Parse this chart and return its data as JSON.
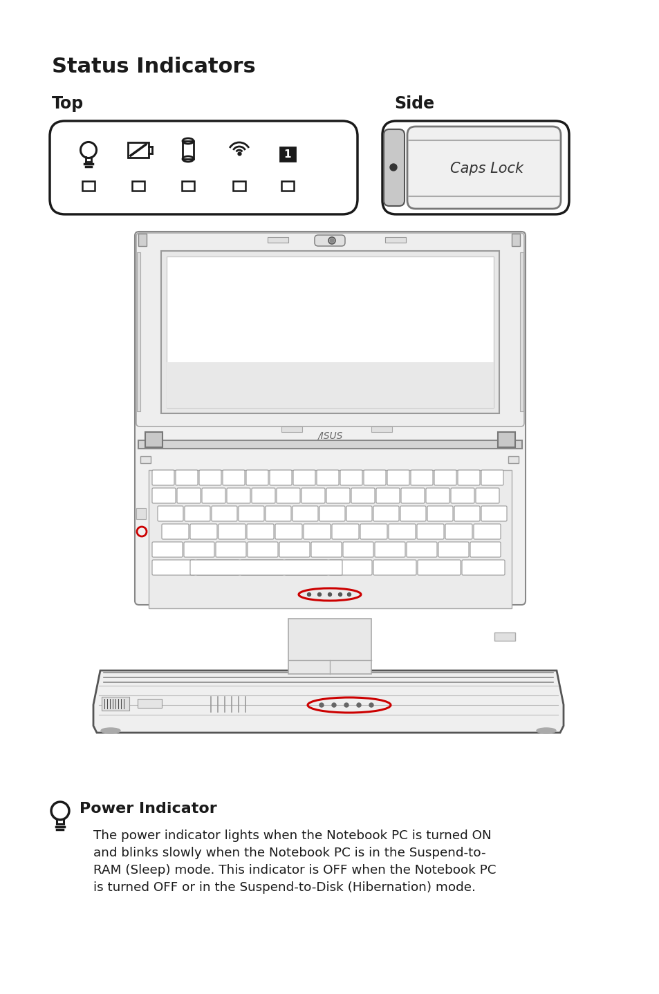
{
  "title": "Status Indicators",
  "top_label": "Top",
  "side_label": "Side",
  "caps_lock_text": "Caps Lock",
  "power_indicator_title": "Power Indicator",
  "power_indicator_text": "The power indicator lights when the Notebook PC is turned ON\nand blinks slowly when the Notebook PC is in the Suspend-to-\nRAM (Sleep) mode. This indicator is OFF when the Notebook PC\nis turned OFF or in the Suspend-to-Disk (Hibernation) mode.",
  "bg_color": "#ffffff",
  "text_color": "#1a1a1a",
  "box_color": "#1a1a1a",
  "figsize": [
    9.54,
    14.38
  ],
  "dpi": 100
}
